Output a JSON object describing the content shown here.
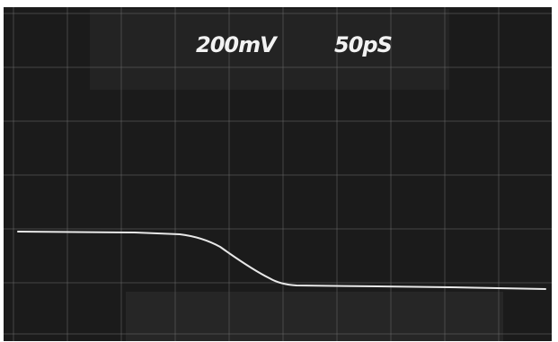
{
  "readout": {
    "volts_per_div": "200mV",
    "time_per_div": "50pS"
  }
}
